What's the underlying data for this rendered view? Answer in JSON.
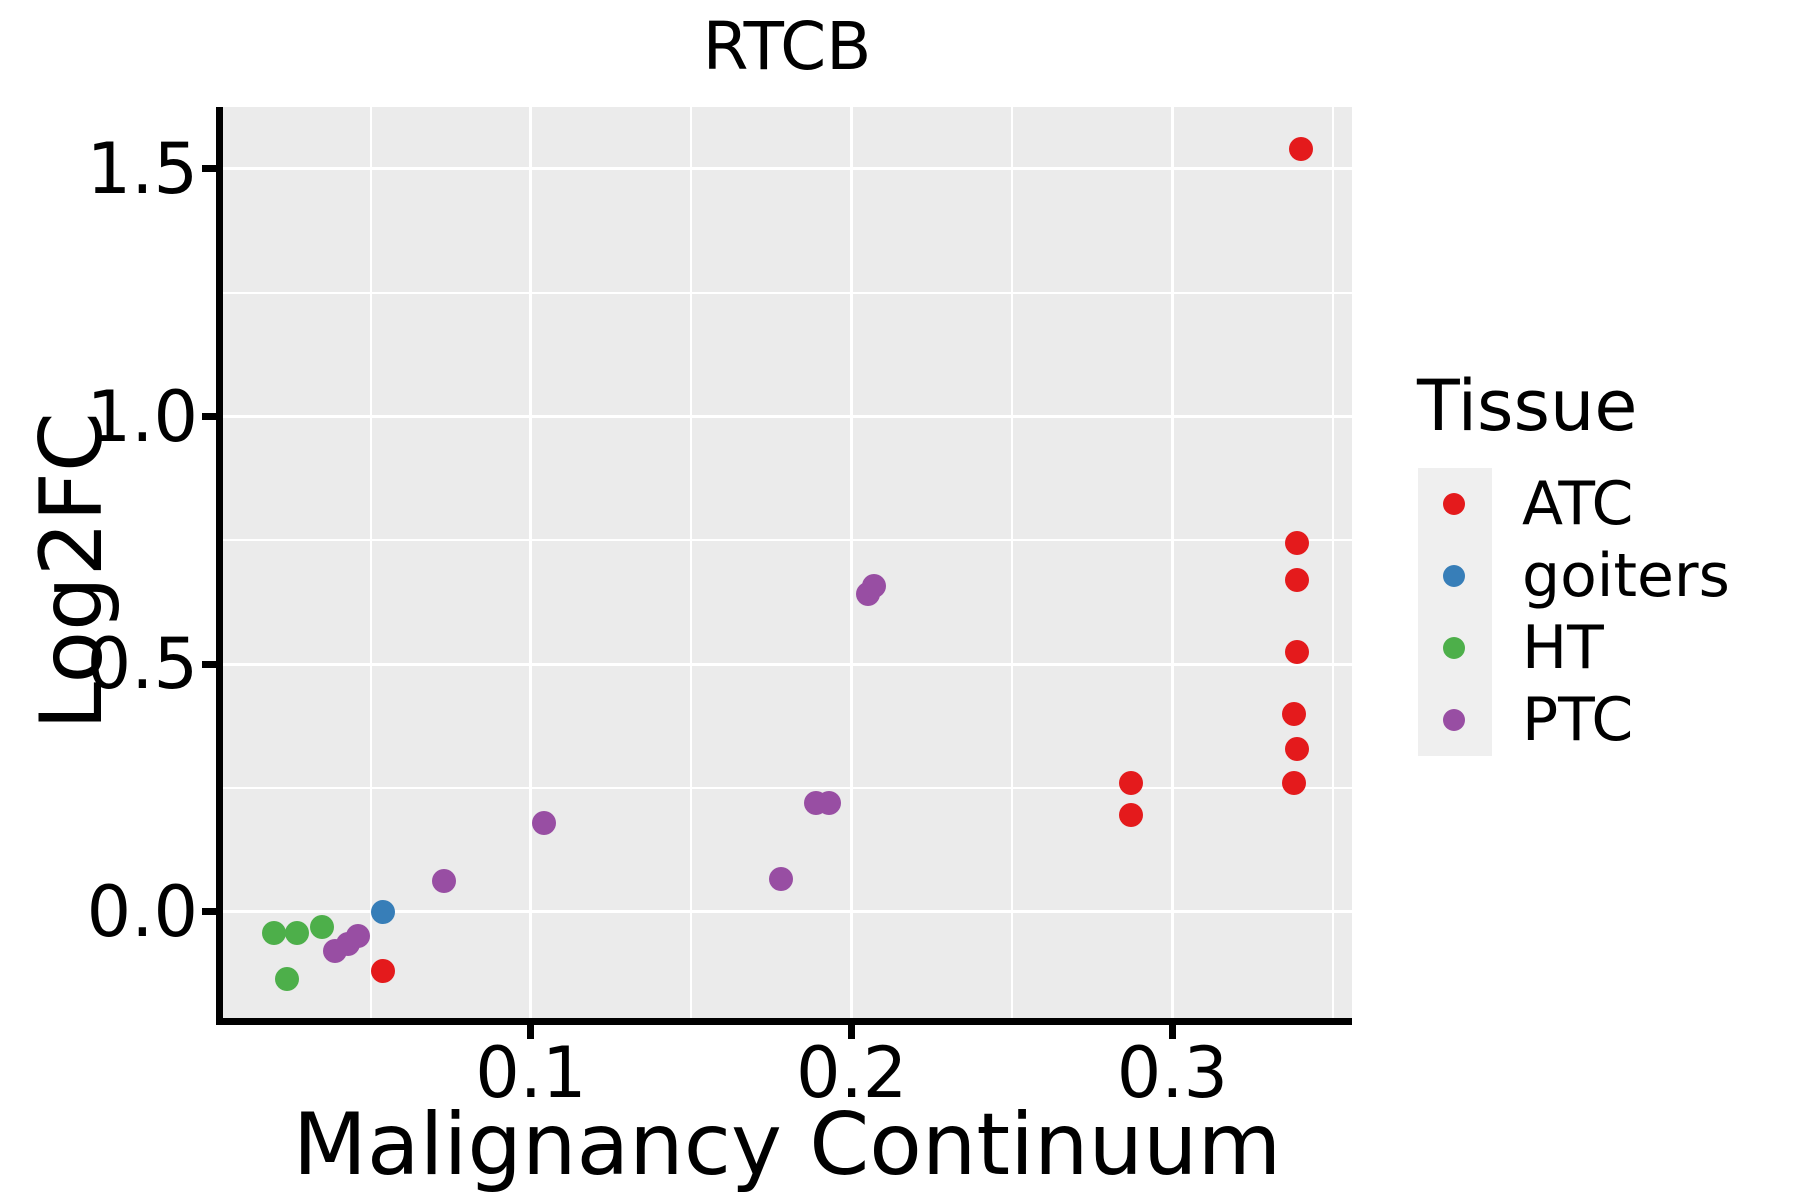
{
  "title": "RTCB",
  "axes": {
    "x": {
      "label": "Malignancy Continuum",
      "tick_labels": [
        "0.1",
        "0.2",
        "0.3"
      ],
      "ticks": [
        0.1,
        0.2,
        0.3
      ],
      "minor_ticks": [
        0.05,
        0.15,
        0.25,
        0.35
      ]
    },
    "y": {
      "label": "Log2FC",
      "tick_labels": [
        "0.0",
        "0.5",
        "1.0",
        "1.5"
      ],
      "ticks": [
        0.0,
        0.5,
        1.0,
        1.5
      ],
      "minor_ticks": [
        0.25,
        0.75,
        1.25
      ]
    }
  },
  "legend": {
    "title": "Tissue",
    "items": [
      {
        "label": "ATC",
        "color": "#E41A1C"
      },
      {
        "label": "goiters",
        "color": "#377EB8"
      },
      {
        "label": "HT",
        "color": "#4DAF4A"
      },
      {
        "label": "PTC",
        "color": "#984EA3"
      }
    ]
  },
  "colors": {
    "panel_background": "#EBEBEB",
    "gridline": "#FFFFFF",
    "axis": "#000000",
    "legend_key_background": "#EFEFEF",
    "atc_red": "#E41A1C",
    "goiters_blue": "#377EB8",
    "ht_green": "#4DAF4A",
    "ptc_purple": "#984EA3"
  },
  "chart_data": {
    "type": "scatter",
    "title": "RTCB",
    "xlabel": "Malignancy Continuum",
    "ylabel": "Log2FC",
    "xlim": [
      0.004,
      0.356
    ],
    "ylim": [
      -0.214,
      1.625
    ],
    "grid": "white major+minor gridlines on gray panel",
    "legend_position": "right",
    "legend_title": "Tissue",
    "series": [
      {
        "name": "ATC",
        "color": "#E41A1C",
        "points": [
          [
            0.34,
            1.54
          ],
          [
            0.339,
            0.745
          ],
          [
            0.339,
            0.67
          ],
          [
            0.339,
            0.525
          ],
          [
            0.338,
            0.4
          ],
          [
            0.339,
            0.33
          ],
          [
            0.338,
            0.26
          ],
          [
            0.287,
            0.26
          ],
          [
            0.287,
            0.195
          ],
          [
            0.054,
            -0.12
          ]
        ]
      },
      {
        "name": "goiters",
        "color": "#377EB8",
        "points": [
          [
            0.054,
            0.0
          ]
        ]
      },
      {
        "name": "HT",
        "color": "#4DAF4A",
        "points": [
          [
            0.02,
            -0.042
          ],
          [
            0.027,
            -0.042
          ],
          [
            0.035,
            -0.03
          ],
          [
            0.024,
            -0.135
          ]
        ]
      },
      {
        "name": "PTC",
        "color": "#984EA3",
        "points": [
          [
            0.039,
            -0.078
          ],
          [
            0.043,
            -0.064
          ],
          [
            0.046,
            -0.048
          ],
          [
            0.073,
            0.063
          ],
          [
            0.104,
            0.18
          ],
          [
            0.178,
            0.067
          ],
          [
            0.189,
            0.22
          ],
          [
            0.193,
            0.22
          ],
          [
            0.205,
            0.642
          ],
          [
            0.207,
            0.658
          ]
        ]
      }
    ]
  }
}
